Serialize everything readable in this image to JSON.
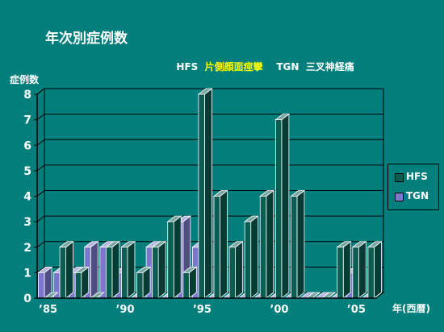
{
  "page": {
    "title": "年次別症例数",
    "subtitle_parts": [
      {
        "text": "HFS  ",
        "color": "#ffffff"
      },
      {
        "text": "片側顔面痙攣",
        "color": "#ffff00"
      },
      {
        "text": "    TGN  三叉神経痛",
        "color": "#ffffff"
      }
    ]
  },
  "chart_data": {
    "type": "bar",
    "ylabel": "症例数",
    "xlabel": "年(西暦)",
    "ylim": [
      0,
      8
    ],
    "yticks": [
      0,
      1,
      2,
      3,
      4,
      5,
      6,
      7,
      8
    ],
    "grid": true,
    "legend_position": "right",
    "categories": [
      1985,
      1986,
      1987,
      1988,
      1989,
      1990,
      1991,
      1992,
      1993,
      1994,
      1995,
      1996,
      1997,
      1998,
      1999,
      2000,
      2001,
      2002,
      2003,
      2004,
      2005,
      2006
    ],
    "x_tick_labels": [
      {
        "category": 1985,
        "label": "’85"
      },
      {
        "category": 1990,
        "label": "’90"
      },
      {
        "category": 1995,
        "label": "’95"
      },
      {
        "category": 2000,
        "label": "’00"
      },
      {
        "category": 2005,
        "label": "’05"
      }
    ],
    "series": [
      {
        "name": "HFS",
        "color": "#0b5d52",
        "values": [
          0,
          2,
          1,
          0,
          2,
          2,
          1,
          2,
          3,
          1,
          8,
          4,
          2,
          3,
          4,
          7,
          4,
          0,
          0,
          2,
          2,
          2
        ]
      },
      {
        "name": "TGN",
        "color": "#7b77cc",
        "values": [
          1,
          1,
          1,
          2,
          2,
          1,
          0,
          2,
          0,
          3,
          2,
          0,
          0,
          0,
          0,
          0,
          0,
          0,
          0,
          0,
          1,
          0
        ]
      }
    ]
  },
  "colors": {
    "background": "#027f7d",
    "axis": "#000000",
    "grid": "#000000"
  }
}
